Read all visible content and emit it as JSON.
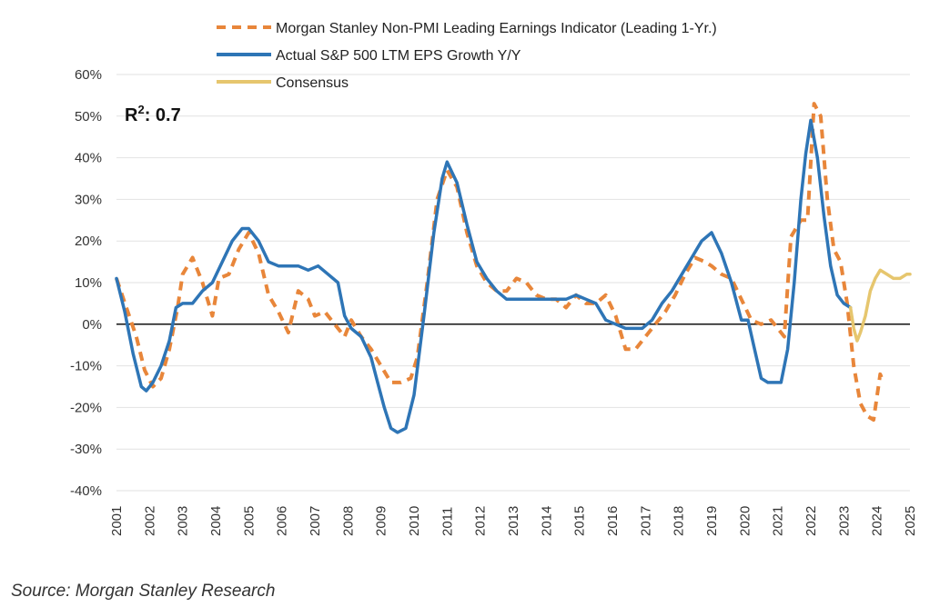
{
  "chart_data": {
    "type": "line",
    "xlim": [
      2001,
      2025
    ],
    "ylim": [
      -40,
      60
    ],
    "grid": true,
    "legend_position": "top",
    "annotation": {
      "label": "R",
      "superscript": "2",
      "value": ": 0.7"
    },
    "x_ticks": [
      "2001",
      "2002",
      "2003",
      "2004",
      "2005",
      "2006",
      "2007",
      "2008",
      "2009",
      "2010",
      "2011",
      "2012",
      "2013",
      "2014",
      "2015",
      "2016",
      "2017",
      "2018",
      "2019",
      "2020",
      "2021",
      "2022",
      "2023",
      "2024",
      "2025"
    ],
    "y_ticks": [
      {
        "value": 60,
        "label": "60%"
      },
      {
        "value": 50,
        "label": "50%"
      },
      {
        "value": 40,
        "label": "40%"
      },
      {
        "value": 30,
        "label": "30%"
      },
      {
        "value": 20,
        "label": "20%"
      },
      {
        "value": 10,
        "label": "10%"
      },
      {
        "value": 0,
        "label": "0%"
      },
      {
        "value": -10,
        "label": "-10%"
      },
      {
        "value": -20,
        "label": "-20%"
      },
      {
        "value": -30,
        "label": "-30%"
      },
      {
        "value": -40,
        "label": "-40%"
      }
    ],
    "series": [
      {
        "name": "Morgan Stanley Non-PMI Leading Earnings Indicator (Leading 1-Yr.)",
        "color": "#E8863A",
        "style": "dashed",
        "x": [
          2001.0,
          2001.3,
          2001.6,
          2001.85,
          2002.1,
          2002.35,
          2002.6,
          2002.85,
          2003.0,
          2003.3,
          2003.6,
          2003.9,
          2004.1,
          2004.4,
          2004.7,
          2005.0,
          2005.3,
          2005.6,
          2005.9,
          2006.2,
          2006.5,
          2006.8,
          2007.0,
          2007.3,
          2007.6,
          2007.9,
          2008.1,
          2008.4,
          2008.7,
          2009.0,
          2009.3,
          2009.6,
          2009.9,
          2010.1,
          2010.4,
          2010.7,
          2011.0,
          2011.3,
          2011.6,
          2011.9,
          2012.2,
          2012.5,
          2012.8,
          2013.1,
          2013.4,
          2013.7,
          2014.0,
          2014.3,
          2014.6,
          2014.9,
          2015.2,
          2015.5,
          2015.8,
          2016.1,
          2016.4,
          2016.7,
          2017.0,
          2017.3,
          2017.6,
          2017.9,
          2018.2,
          2018.5,
          2018.8,
          2019.0,
          2019.3,
          2019.6,
          2019.9,
          2020.2,
          2020.5,
          2020.8,
          2021.0,
          2021.2,
          2021.4,
          2021.7,
          2021.9,
          2022.1,
          2022.3,
          2022.5,
          2022.7,
          2022.9,
          2023.1,
          2023.3,
          2023.5,
          2023.7,
          2023.9,
          2024.1,
          2024.2
        ],
        "y": [
          11,
          4,
          -3,
          -11,
          -15,
          -13,
          -6,
          4,
          12,
          16,
          10,
          2,
          11,
          12,
          18,
          22,
          17,
          7,
          3,
          -2,
          8,
          6,
          2,
          3,
          0,
          -3,
          1,
          -3,
          -6,
          -10,
          -14,
          -14,
          -13,
          -8,
          10,
          30,
          37,
          33,
          22,
          14,
          10,
          8,
          8,
          11,
          10,
          7,
          6,
          6,
          4,
          7,
          5,
          5,
          7,
          2,
          -6,
          -6,
          -3,
          0,
          3,
          7,
          12,
          16,
          15,
          14,
          12,
          11,
          6,
          1,
          0,
          1,
          -1,
          -3,
          21,
          25,
          25,
          53,
          50,
          30,
          18,
          15,
          5,
          -10,
          -19,
          -22,
          -23,
          -12,
          -14
        ]
      },
      {
        "name": "Actual S&P 500 LTM EPS Growth Y/Y",
        "color": "#2E75B6",
        "style": "solid",
        "x": [
          2001.0,
          2001.25,
          2001.5,
          2001.75,
          2001.9,
          2002.1,
          2002.35,
          2002.6,
          2002.8,
          2003.0,
          2003.3,
          2003.6,
          2003.9,
          2004.2,
          2004.5,
          2004.8,
          2005.0,
          2005.3,
          2005.6,
          2005.9,
          2006.2,
          2006.5,
          2006.8,
          2007.1,
          2007.4,
          2007.7,
          2007.9,
          2008.1,
          2008.4,
          2008.7,
          2008.9,
          2009.1,
          2009.3,
          2009.5,
          2009.75,
          2010.0,
          2010.3,
          2010.6,
          2010.85,
          2011.0,
          2011.3,
          2011.6,
          2011.9,
          2012.2,
          2012.5,
          2012.8,
          2013.1,
          2013.4,
          2013.7,
          2014.0,
          2014.3,
          2014.6,
          2014.9,
          2015.2,
          2015.5,
          2015.8,
          2016.1,
          2016.4,
          2016.7,
          2016.9,
          2017.2,
          2017.5,
          2017.8,
          2018.1,
          2018.4,
          2018.7,
          2019.0,
          2019.3,
          2019.6,
          2019.9,
          2020.1,
          2020.3,
          2020.5,
          2020.7,
          2020.9,
          2021.1,
          2021.3,
          2021.5,
          2021.7,
          2021.85,
          2022.0,
          2022.2,
          2022.4,
          2022.6,
          2022.8,
          2023.0,
          2023.2
        ],
        "y": [
          11,
          3,
          -7,
          -15,
          -16,
          -14,
          -10,
          -4,
          4,
          5,
          5,
          8,
          10,
          15,
          20,
          23,
          23,
          20,
          15,
          14,
          14,
          14,
          13,
          14,
          12,
          10,
          2,
          -1,
          -3,
          -8,
          -14,
          -20,
          -25,
          -26,
          -25,
          -17,
          2,
          22,
          35,
          39,
          34,
          24,
          15,
          11,
          8,
          6,
          6,
          6,
          6,
          6,
          6,
          6,
          7,
          6,
          5,
          1,
          0,
          -1,
          -1,
          -1,
          1,
          5,
          8,
          12,
          16,
          20,
          22,
          17,
          10,
          1,
          1,
          -6,
          -13,
          -14,
          -14,
          -14,
          -6,
          10,
          30,
          41,
          49,
          40,
          26,
          14,
          7,
          5,
          4
        ]
      },
      {
        "name": "Consensus",
        "color": "#E6C66E",
        "style": "solid",
        "x": [
          2023.2,
          2023.3,
          2023.4,
          2023.5,
          2023.65,
          2023.8,
          2023.95,
          2024.1,
          2024.3,
          2024.5,
          2024.7,
          2024.9,
          2025.0
        ],
        "y": [
          4,
          -1,
          -4,
          -2,
          2,
          8,
          11,
          13,
          12,
          11,
          11,
          12,
          12
        ]
      }
    ]
  },
  "source": "Source: Morgan Stanley Research"
}
